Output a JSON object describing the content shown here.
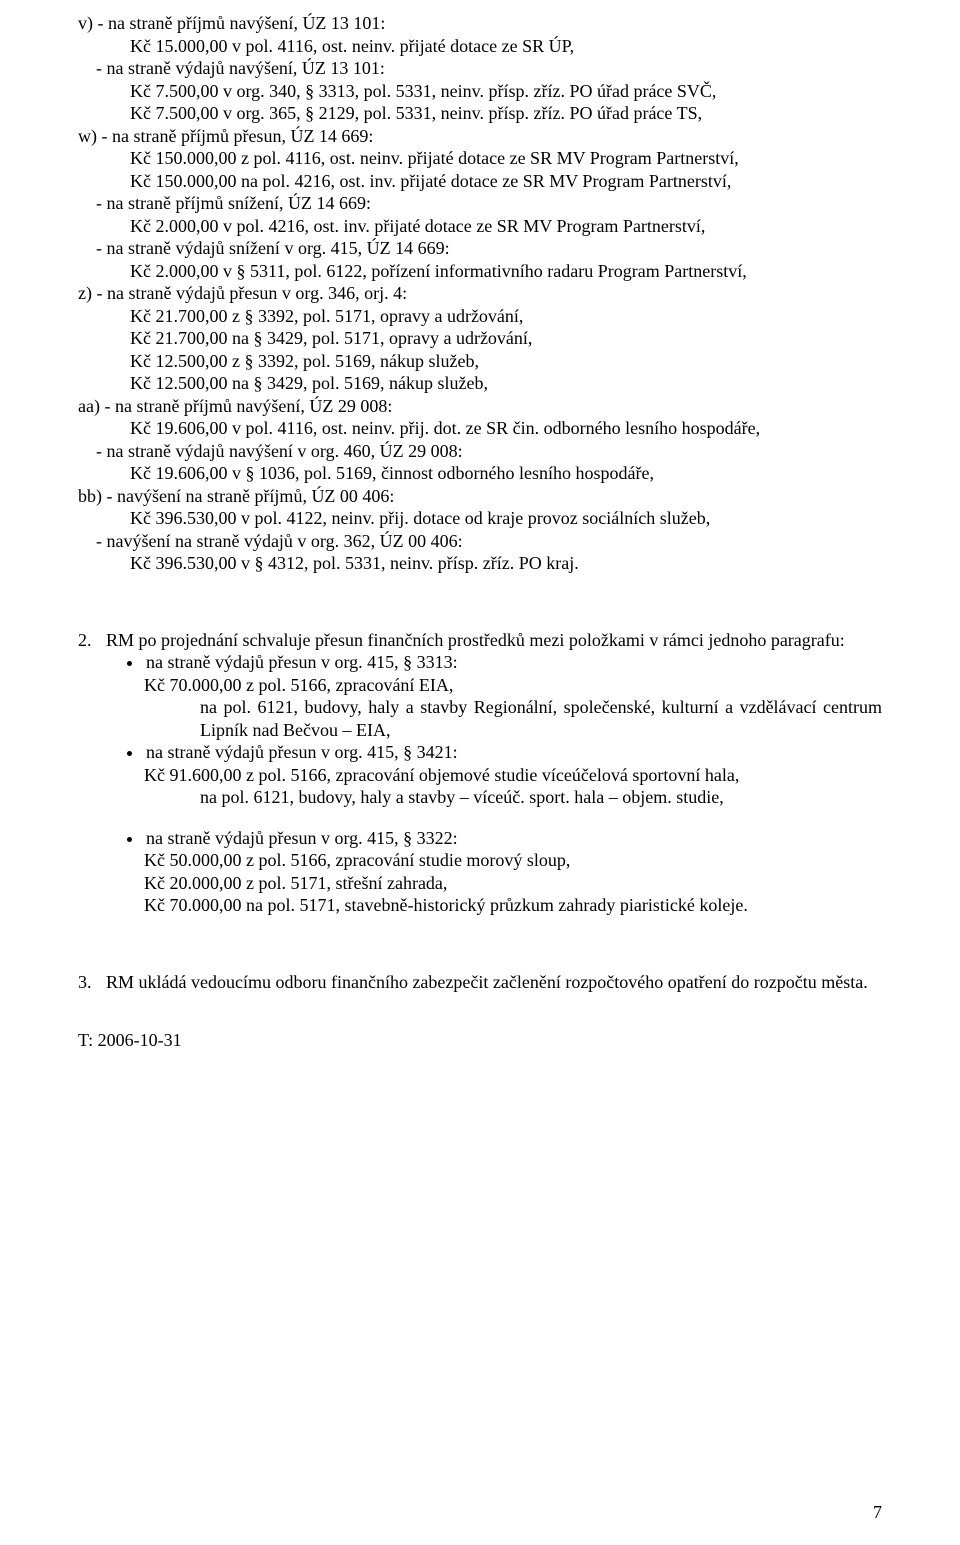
{
  "section_v": {
    "l1": "v) - na straně příjmů navýšení, ÚZ 13 101:",
    "l2": "Kč 15.000,00 v pol. 4116, ost. neinv. přijaté dotace ze SR ÚP,",
    "l3": "- na straně výdajů navýšení, ÚZ 13 101:",
    "l4": "Kč 7.500,00 v org. 340, § 3313, pol. 5331, neinv. přísp. zříz. PO úřad práce SVČ,",
    "l5": "Kč 7.500,00 v org. 365, § 2129, pol. 5331, neinv. přísp. zříz. PO úřad práce TS,"
  },
  "section_w": {
    "l1": "w) - na straně příjmů přesun, ÚZ 14 669:",
    "l2": "Kč 150.000,00 z pol. 4116, ost. neinv. přijaté dotace ze SR MV Program Partnerství,",
    "l3": "Kč 150.000,00 na pol. 4216, ost. inv. přijaté dotace ze SR MV Program Partnerství,",
    "l4": "- na straně příjmů snížení, ÚZ 14 669:",
    "l5": "Kč 2.000,00 v pol. 4216, ost. inv. přijaté dotace ze SR MV Program Partnerství,",
    "l6": "- na straně výdajů snížení v org. 415, ÚZ 14 669:",
    "l7": "Kč 2.000,00 v § 5311, pol. 6122, pořízení informativního radaru Program Partnerství,"
  },
  "section_z": {
    "l1": "z) - na straně výdajů přesun v org. 346, orj. 4:",
    "l2": "Kč 21.700,00 z § 3392, pol. 5171, opravy a udržování,",
    "l3": "Kč 21.700,00 na § 3429, pol. 5171, opravy a udržování,",
    "l4": "Kč 12.500,00 z § 3392, pol. 5169, nákup služeb,",
    "l5": "Kč 12.500,00 na § 3429, pol. 5169, nákup služeb,"
  },
  "section_aa": {
    "l1": "aa) - na straně příjmů navýšení, ÚZ 29 008:",
    "l2": "Kč 19.606,00 v pol. 4116, ost. neinv. přij. dot. ze SR čin. odborného lesního hospodáře,",
    "l3": "- na straně výdajů navýšení v org. 460, ÚZ 29 008:",
    "l4": "Kč 19.606,00 v § 1036, pol. 5169, činnost odborného lesního hospodáře,"
  },
  "section_bb": {
    "l1": "bb) - navýšení na straně příjmů, ÚZ 00 406:",
    "l2": "Kč 396.530,00 v pol. 4122, neinv. přij. dotace od kraje provoz sociálních služeb,",
    "l3": "- navýšení na straně výdajů v org. 362, ÚZ 00 406:",
    "l4": "Kč 396.530,00 v § 4312, pol. 5331, neinv. přísp. zříz. PO kraj."
  },
  "item2": {
    "num": "2.",
    "intro": "RM po projednání schvaluje přesun finančních prostředků mezi položkami v rámci jednoho paragrafu:",
    "b1": "na straně výdajů přesun v org. 415, § 3313:",
    "b1a": "Kč 70.000,00 z pol. 5166, zpracování EIA,",
    "b1b": "na pol. 6121, budovy, haly a stavby Regionální, společenské, kulturní a vzdělávací centrum Lipník nad Bečvou – EIA,",
    "b2": "na straně výdajů přesun v org. 415, § 3421:",
    "b2a": "Kč 91.600,00 z pol. 5166, zpracování objemové studie víceúčelová sportovní hala,",
    "b2b": "na pol. 6121, budovy, haly a stavby – víceúč. sport. hala – objem. studie,",
    "b3": "na straně výdajů přesun v org. 415, § 3322:",
    "b3a": "Kč 50.000,00 z pol. 5166, zpracování studie morový sloup,",
    "b3b": "Kč 20.000,00 z pol. 5171, střešní zahrada,",
    "b3c": "Kč 70.000,00 na pol. 5171, stavebně-historický průzkum zahrady piaristické koleje."
  },
  "item3": {
    "num": "3.",
    "text": "RM ukládá vedoucímu odboru finančního zabezpečit začlenění rozpočtového opatření do rozpočtu města."
  },
  "date": "T: 2006-10-31",
  "page": "7"
}
